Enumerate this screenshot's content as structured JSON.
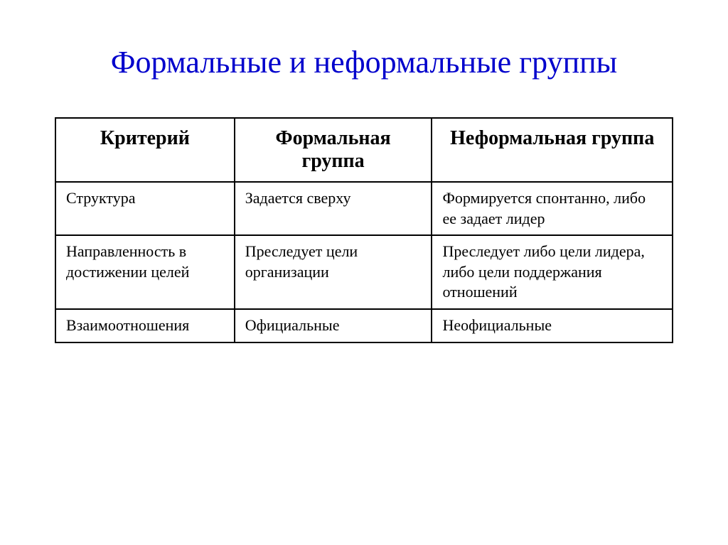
{
  "title": "Формальные и неформальные группы",
  "table": {
    "columns": [
      "Критерий",
      "Формальная группа",
      "Неформальная группа"
    ],
    "rows": [
      [
        "Структура",
        "Задается сверху",
        "Формируется спонтанно, либо ее задает лидер"
      ],
      [
        "Направленность в достижении целей",
        "Преследует цели организации",
        "Преследует либо цели лидера, либо цели поддержания отношений"
      ],
      [
        "Взаимоотношения",
        "Официальные",
        "Неофициальные"
      ]
    ],
    "column_widths": [
      "29%",
      "32%",
      "39%"
    ],
    "header_fontsize": 28,
    "cell_fontsize": 22,
    "border_color": "#000000",
    "border_width": 2
  },
  "styling": {
    "title_color": "#0000cc",
    "title_fontsize": 44,
    "background_color": "#ffffff",
    "font_family": "Times New Roman"
  }
}
